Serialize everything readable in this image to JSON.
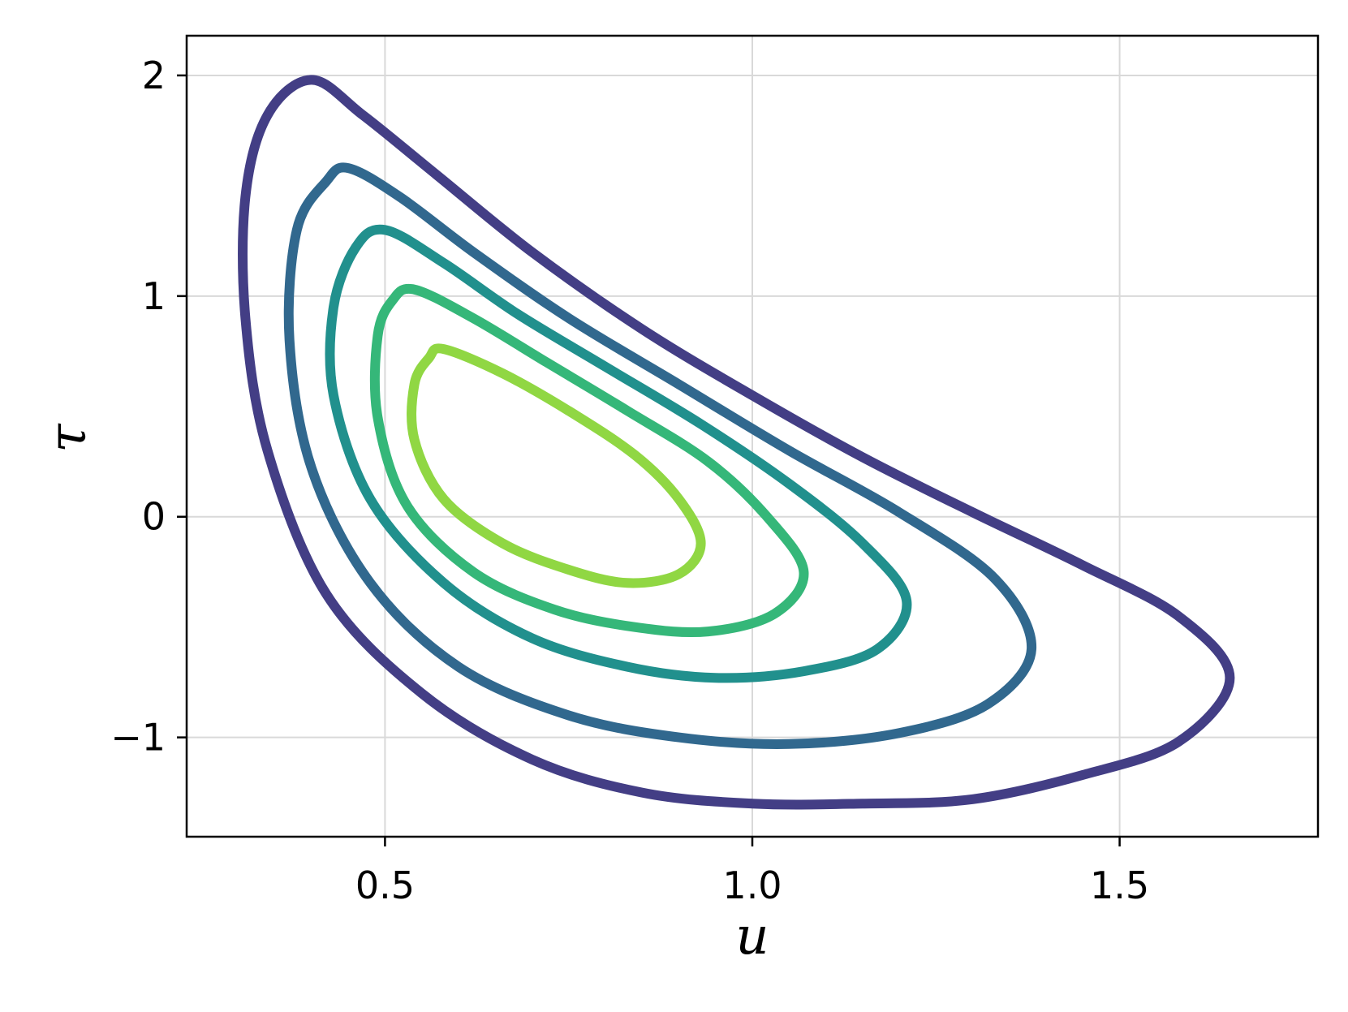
{
  "chart_data": {
    "type": "line",
    "subtype": "contour",
    "xlabel": "u",
    "ylabel": "τ",
    "xlim": [
      0.23,
      1.77
    ],
    "ylim": [
      -1.45,
      2.18
    ],
    "xticks": [
      0.5,
      1.0,
      1.5
    ],
    "xtick_labels": [
      "0.5",
      "1.0",
      "1.5"
    ],
    "yticks": [
      -1,
      0,
      1,
      2
    ],
    "ytick_labels": [
      "−1",
      "0",
      "1",
      "2"
    ],
    "grid": true,
    "legend": "none",
    "series": [
      {
        "color": "#433e85",
        "points": [
          [
            0.4,
            1.98
          ],
          [
            0.47,
            1.82
          ],
          [
            0.57,
            1.55
          ],
          [
            0.7,
            1.2
          ],
          [
            0.85,
            0.85
          ],
          [
            1.0,
            0.55
          ],
          [
            1.15,
            0.27
          ],
          [
            1.3,
            0.02
          ],
          [
            1.45,
            -0.22
          ],
          [
            1.58,
            -0.45
          ],
          [
            1.65,
            -0.73
          ],
          [
            1.58,
            -1.02
          ],
          [
            1.45,
            -1.17
          ],
          [
            1.3,
            -1.28
          ],
          [
            1.15,
            -1.3
          ],
          [
            1.0,
            -1.3
          ],
          [
            0.85,
            -1.25
          ],
          [
            0.7,
            -1.1
          ],
          [
            0.55,
            -0.8
          ],
          [
            0.42,
            -0.35
          ],
          [
            0.34,
            0.3
          ],
          [
            0.31,
            0.9
          ],
          [
            0.31,
            1.45
          ],
          [
            0.34,
            1.82
          ]
        ]
      },
      {
        "color": "#31688e",
        "points": [
          [
            0.45,
            1.58
          ],
          [
            0.52,
            1.45
          ],
          [
            0.62,
            1.2
          ],
          [
            0.75,
            0.9
          ],
          [
            0.9,
            0.6
          ],
          [
            1.05,
            0.3
          ],
          [
            1.2,
            0.02
          ],
          [
            1.33,
            -0.28
          ],
          [
            1.38,
            -0.6
          ],
          [
            1.32,
            -0.85
          ],
          [
            1.2,
            -0.98
          ],
          [
            1.05,
            -1.03
          ],
          [
            0.9,
            -1.0
          ],
          [
            0.75,
            -0.9
          ],
          [
            0.6,
            -0.68
          ],
          [
            0.48,
            -0.3
          ],
          [
            0.4,
            0.22
          ],
          [
            0.37,
            0.8
          ],
          [
            0.38,
            1.3
          ],
          [
            0.42,
            1.52
          ]
        ]
      },
      {
        "color": "#21908d",
        "points": [
          [
            0.5,
            1.3
          ],
          [
            0.58,
            1.15
          ],
          [
            0.68,
            0.92
          ],
          [
            0.8,
            0.68
          ],
          [
            0.93,
            0.42
          ],
          [
            1.05,
            0.15
          ],
          [
            1.15,
            -0.12
          ],
          [
            1.21,
            -0.38
          ],
          [
            1.17,
            -0.6
          ],
          [
            1.07,
            -0.7
          ],
          [
            0.95,
            -0.73
          ],
          [
            0.83,
            -0.68
          ],
          [
            0.7,
            -0.55
          ],
          [
            0.58,
            -0.3
          ],
          [
            0.48,
            0.08
          ],
          [
            0.43,
            0.55
          ],
          [
            0.43,
            0.95
          ],
          [
            0.46,
            1.22
          ]
        ]
      },
      {
        "color": "#35b779",
        "points": [
          [
            0.54,
            1.03
          ],
          [
            0.62,
            0.9
          ],
          [
            0.72,
            0.7
          ],
          [
            0.83,
            0.48
          ],
          [
            0.94,
            0.25
          ],
          [
            1.02,
            0.0
          ],
          [
            1.07,
            -0.25
          ],
          [
            1.03,
            -0.44
          ],
          [
            0.94,
            -0.52
          ],
          [
            0.84,
            -0.5
          ],
          [
            0.73,
            -0.42
          ],
          [
            0.62,
            -0.25
          ],
          [
            0.53,
            0.05
          ],
          [
            0.49,
            0.45
          ],
          [
            0.49,
            0.82
          ],
          [
            0.51,
            0.98
          ]
        ]
      },
      {
        "color": "#90d743",
        "points": [
          [
            0.58,
            0.76
          ],
          [
            0.66,
            0.65
          ],
          [
            0.75,
            0.48
          ],
          [
            0.84,
            0.28
          ],
          [
            0.9,
            0.08
          ],
          [
            0.93,
            -0.12
          ],
          [
            0.9,
            -0.26
          ],
          [
            0.83,
            -0.3
          ],
          [
            0.75,
            -0.24
          ],
          [
            0.66,
            -0.12
          ],
          [
            0.58,
            0.08
          ],
          [
            0.54,
            0.35
          ],
          [
            0.54,
            0.6
          ],
          [
            0.56,
            0.72
          ]
        ]
      }
    ]
  }
}
